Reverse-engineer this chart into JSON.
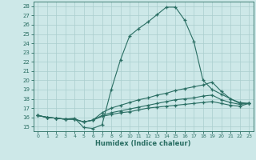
{
  "xlabel": "Humidex (Indice chaleur)",
  "xlim": [
    -0.5,
    23.5
  ],
  "ylim": [
    14.5,
    28.5
  ],
  "yticks": [
    15,
    16,
    17,
    18,
    19,
    20,
    21,
    22,
    23,
    24,
    25,
    26,
    27,
    28
  ],
  "xticks": [
    0,
    1,
    2,
    3,
    4,
    5,
    6,
    7,
    8,
    9,
    10,
    11,
    12,
    13,
    14,
    15,
    16,
    17,
    18,
    19,
    20,
    21,
    22,
    23
  ],
  "bg_color": "#cde8e8",
  "line_color": "#2a6e63",
  "grid_color": "#aacece",
  "curves": [
    [
      16.2,
      16.0,
      15.9,
      15.8,
      15.9,
      14.9,
      14.8,
      15.2,
      19.0,
      22.2,
      24.8,
      25.6,
      26.3,
      27.1,
      27.9,
      27.9,
      26.5,
      24.2,
      20.0,
      19.0,
      18.5,
      18.0,
      17.5,
      17.5
    ],
    [
      16.2,
      16.0,
      15.9,
      15.8,
      15.8,
      15.5,
      15.7,
      16.5,
      17.0,
      17.3,
      17.6,
      17.9,
      18.1,
      18.4,
      18.6,
      18.9,
      19.1,
      19.3,
      19.5,
      19.8,
      18.8,
      18.0,
      17.6,
      17.5
    ],
    [
      16.2,
      16.0,
      15.9,
      15.8,
      15.8,
      15.5,
      15.7,
      16.2,
      16.5,
      16.7,
      16.9,
      17.1,
      17.3,
      17.5,
      17.7,
      17.9,
      18.0,
      18.1,
      18.3,
      18.4,
      17.9,
      17.6,
      17.4,
      17.5
    ],
    [
      16.2,
      16.0,
      15.9,
      15.8,
      15.8,
      15.5,
      15.7,
      16.1,
      16.3,
      16.5,
      16.6,
      16.8,
      17.0,
      17.1,
      17.2,
      17.3,
      17.4,
      17.5,
      17.6,
      17.7,
      17.5,
      17.3,
      17.2,
      17.5
    ]
  ]
}
